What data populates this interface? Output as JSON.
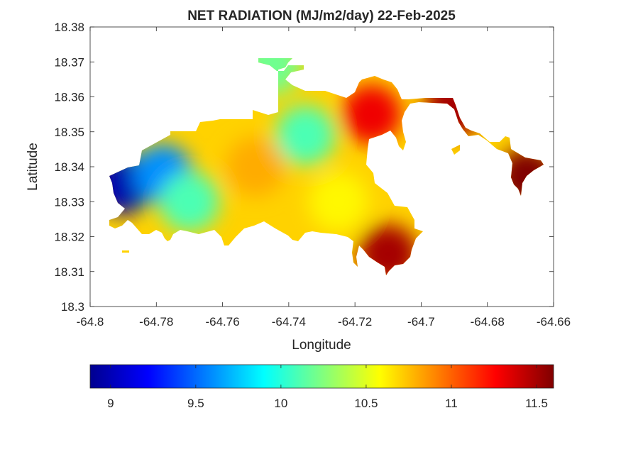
{
  "chart_data": {
    "type": "heatmap",
    "title": "NET RADIATION (MJ/m2/day) 22-Feb-2025",
    "xlabel": "Longitude",
    "ylabel": "Latitude",
    "xlim": [
      -64.8,
      -64.66
    ],
    "ylim": [
      18.3,
      18.38
    ],
    "xticks": [
      -64.8,
      -64.78,
      -64.76,
      -64.74,
      -64.72,
      -64.7,
      -64.68,
      -64.66
    ],
    "xtick_labels": [
      "-64.8",
      "-64.78",
      "-64.76",
      "-64.74",
      "-64.72",
      "-64.7",
      "-64.68",
      "-64.66"
    ],
    "yticks": [
      18.3,
      18.31,
      18.32,
      18.33,
      18.34,
      18.35,
      18.36,
      18.37,
      18.38
    ],
    "ytick_labels": [
      "18.3",
      "18.31",
      "18.32",
      "18.33",
      "18.34",
      "18.35",
      "18.36",
      "18.37",
      "18.38"
    ],
    "colormap": "jet",
    "colorbar": {
      "location": "bottom",
      "range": [
        8.88,
        11.6
      ],
      "ticks": [
        9,
        9.5,
        10,
        10.5,
        11,
        11.5
      ],
      "tick_labels": [
        "9",
        "9.5",
        "10",
        "10.5",
        "11",
        "11.5"
      ]
    },
    "grid": false,
    "regions": [
      {
        "lon": -64.79,
        "lat": 18.335,
        "value": 9.0
      },
      {
        "lon": -64.778,
        "lat": 18.338,
        "value": 9.6
      },
      {
        "lon": -64.77,
        "lat": 18.33,
        "value": 10.1
      },
      {
        "lon": -64.745,
        "lat": 18.369,
        "value": 10.2
      },
      {
        "lon": -64.735,
        "lat": 18.349,
        "value": 10.1
      },
      {
        "lon": -64.75,
        "lat": 18.34,
        "value": 10.8
      },
      {
        "lon": -64.725,
        "lat": 18.33,
        "value": 10.6
      },
      {
        "lon": -64.715,
        "lat": 18.355,
        "value": 11.3
      },
      {
        "lon": -64.69,
        "lat": 18.357,
        "value": 11.5
      },
      {
        "lon": -64.668,
        "lat": 18.337,
        "value": 11.6
      },
      {
        "lon": -64.71,
        "lat": 18.315,
        "value": 11.5
      }
    ]
  }
}
